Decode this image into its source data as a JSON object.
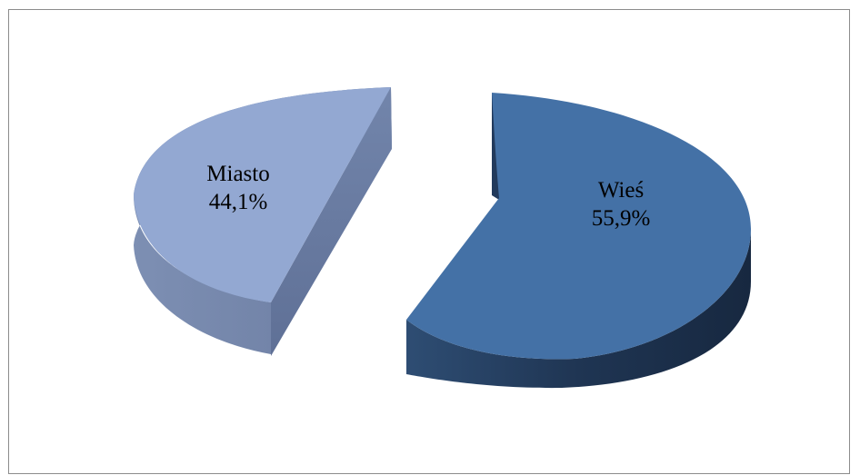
{
  "chart_data": {
    "type": "pie",
    "style": "3d-exploded",
    "slices": [
      {
        "label": "Wieś",
        "value": 55.9,
        "value_label": "55,9%",
        "color": "#4471a6"
      },
      {
        "label": "Miasto",
        "value": 44.1,
        "value_label": "44,1%",
        "color": "#93a8d2"
      }
    ],
    "legend": "none"
  }
}
